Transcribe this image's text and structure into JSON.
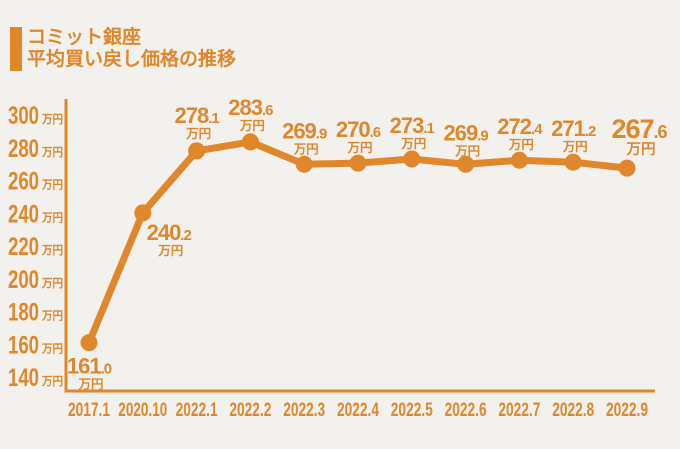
{
  "page": {
    "background_color": "#F2F1ED",
    "accent_color": "#E0872B"
  },
  "header": {
    "title_line1": "コミット銀座",
    "title_line2": "平均買い戻し価格の推移"
  },
  "chart_data": {
    "type": "line",
    "title": "コミット銀座 平均買い戻し価格の推移",
    "categories": [
      "2017.1",
      "2020.10",
      "2022.1",
      "2022.2",
      "2022.3",
      "2022.4",
      "2022.5",
      "2022.6",
      "2022.7",
      "2022.8",
      "2022.9"
    ],
    "values": [
      161.0,
      240.2,
      278.1,
      283.6,
      269.9,
      270.6,
      273.1,
      269.9,
      272.4,
      271.2,
      267.6
    ],
    "value_labels": [
      "161.0",
      "240.2",
      "278.1",
      "283.6",
      "269.9",
      "270.6",
      "273.1",
      "269.9",
      "272.4",
      "271.2",
      "267.6"
    ],
    "value_unit": "万円",
    "xlabel": "",
    "ylabel": "",
    "y_axis": {
      "min": 140,
      "max": 300,
      "step": 20,
      "tick_suffix": "万円",
      "tick_labels": [
        "300",
        "280",
        "260",
        "240",
        "220",
        "200",
        "180",
        "160",
        "140"
      ]
    },
    "ylim": [
      140,
      300
    ],
    "line_color": "#E0872B",
    "marker": "circle",
    "grid": false,
    "legend": false
  }
}
